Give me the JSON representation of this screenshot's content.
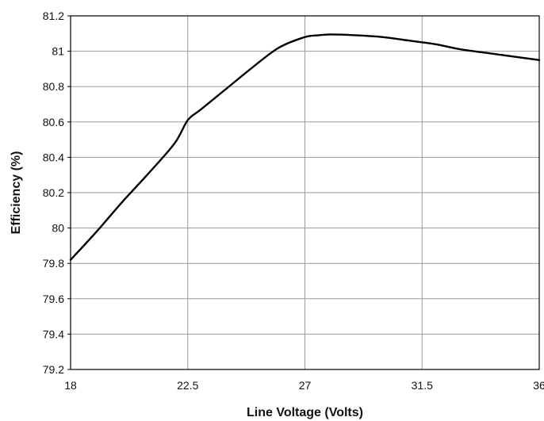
{
  "chart_data": {
    "type": "line",
    "title": "",
    "xlabel": "Line Voltage (Volts)",
    "ylabel": "Efficiency (%)",
    "xlim": [
      18,
      36
    ],
    "ylim": [
      79.2,
      81.2
    ],
    "grid": true,
    "x_ticks": [
      18,
      22.5,
      27,
      31.5,
      36
    ],
    "y_ticks": [
      79.2,
      79.4,
      79.6,
      79.8,
      80,
      80.2,
      80.4,
      80.6,
      80.8,
      81,
      81.2
    ],
    "x_tick_labels": [
      "18",
      "22.5",
      "27",
      "31.5",
      "36"
    ],
    "y_tick_labels": [
      "79.2",
      "79.4",
      "79.6",
      "79.8",
      "80",
      "80.2",
      "80.4",
      "80.6",
      "80.8",
      "81",
      "81.2"
    ],
    "line_color": "#000000",
    "grid_color": "#9a9a9a",
    "series": [
      {
        "x": [
          18,
          19,
          20,
          21,
          22,
          22.5,
          23,
          24,
          25,
          26,
          27,
          27.5,
          28,
          29,
          30,
          31,
          32,
          33,
          34,
          35,
          36
        ],
        "values": [
          79.82,
          79.98,
          80.15,
          80.31,
          80.48,
          80.61,
          80.67,
          80.79,
          80.91,
          81.02,
          81.08,
          81.09,
          81.095,
          81.09,
          81.08,
          81.06,
          81.04,
          81.01,
          80.99,
          80.97,
          80.95
        ]
      }
    ]
  }
}
